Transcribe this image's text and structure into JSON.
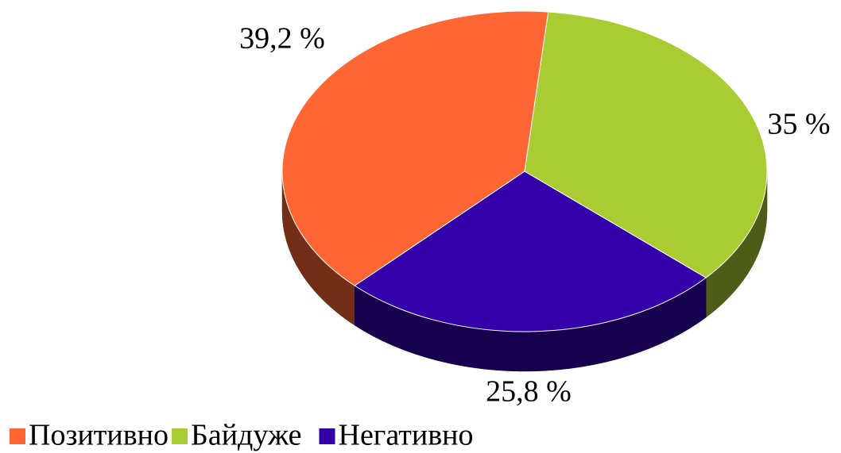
{
  "chart_data": {
    "type": "pie3d",
    "categories": [
      "Позитивно",
      "Байдуже",
      "Негативно"
    ],
    "values": [
      39.2,
      35,
      25.8
    ],
    "value_labels": [
      "39,2 %",
      "35 %",
      "25,8 %"
    ],
    "colors": [
      "#ff6633",
      "#aacc33",
      "#3300aa"
    ],
    "legend": "bottom"
  }
}
